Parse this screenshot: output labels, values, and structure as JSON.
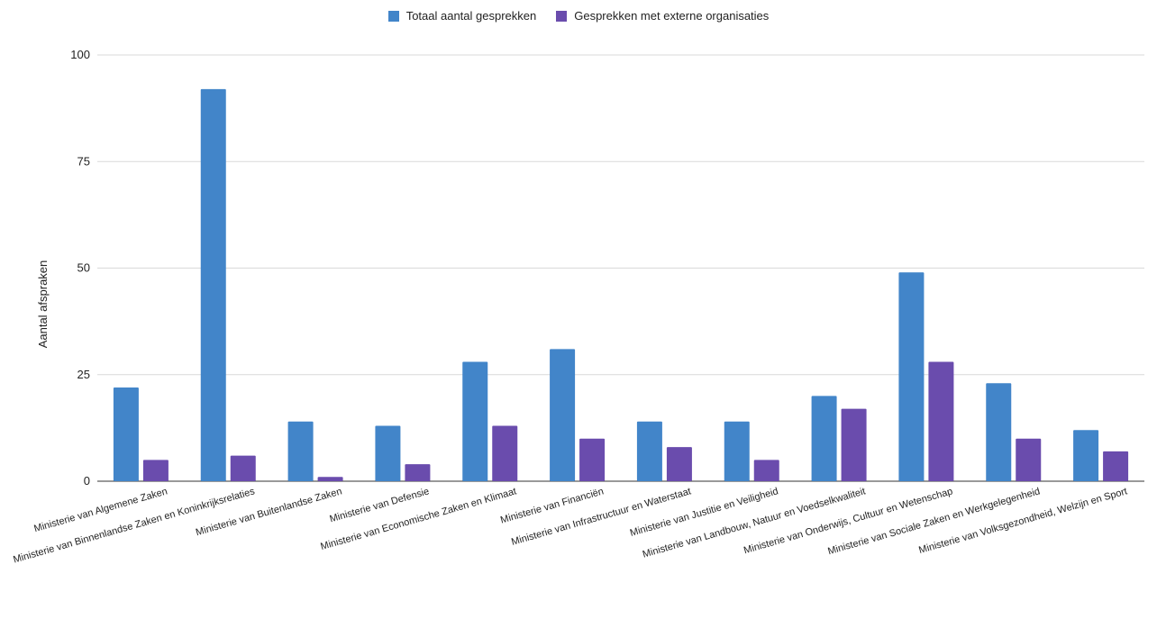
{
  "chart_data": {
    "type": "bar",
    "title": "",
    "xlabel": "",
    "ylabel": "Aantal afspraken",
    "ylim": [
      0,
      100
    ],
    "yticks": [
      0,
      25,
      50,
      75,
      100
    ],
    "grid": true,
    "legend_position": "top-center",
    "categories": [
      "Ministerie van Algemene Zaken",
      "Ministerie van Binnenlandse Zaken en Koninkrijksrelaties",
      "Ministerie van Buitenlandse Zaken",
      "Ministerie van Defensie",
      "Ministerie van Economische Zaken en Klimaat",
      "Ministerie van Financiën",
      "Ministerie van Infrastructuur en Waterstaat",
      "Ministerie van Justitie en Veiligheid",
      "Ministerie van Landbouw, Natuur en Voedselkwaliteit",
      "Ministerie van Onderwijs, Cultuur en Wetenschap",
      "Ministerie van Sociale Zaken en Werkgelegenheid",
      "Ministerie van Volksgezondheid, Welzijn en Sport"
    ],
    "series": [
      {
        "name": "Totaal aantal gesprekken",
        "color": "#4285c9",
        "values": [
          22,
          92,
          14,
          13,
          28,
          31,
          14,
          14,
          20,
          49,
          23,
          12
        ]
      },
      {
        "name": "Gesprekken met externe organisaties",
        "color": "#6a4cad",
        "values": [
          5,
          6,
          1,
          4,
          13,
          10,
          8,
          5,
          17,
          28,
          10,
          7
        ]
      }
    ]
  }
}
